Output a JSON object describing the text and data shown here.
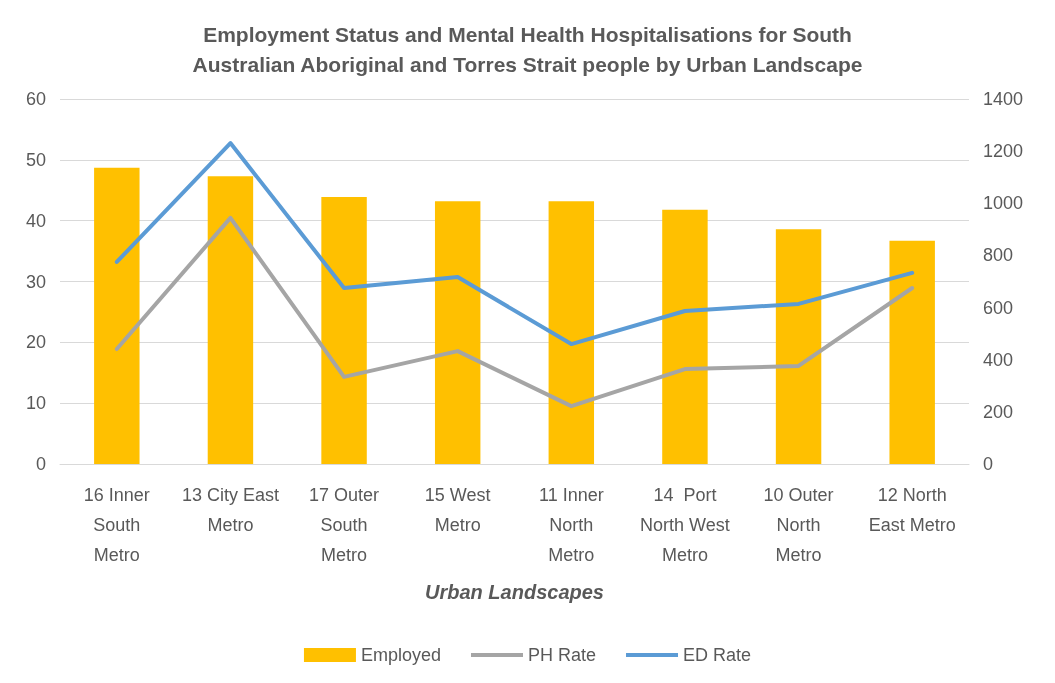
{
  "chart_data": {
    "type": "bar",
    "title": "Employment Status and Mental Health Hospitalisations for South\nAustralian Aboriginal and Torres Strait people by Urban Landscape",
    "xlabel": "Urban Landscapes",
    "categories": [
      "16 Inner\nSouth\nMetro",
      "13 City East\nMetro",
      "17 Outer\nSouth\nMetro",
      "15 West\nMetro",
      "11 Inner\nNorth\nMetro",
      "14  Port\nNorth West\nMetro",
      "10 Outer\nNorth\nMetro",
      "12 North\nEast Metro"
    ],
    "series": [
      {
        "name": "Employed",
        "color": "#ffc000",
        "values": [
          48.7,
          47.3,
          43.9,
          43.2,
          43.2,
          41.8,
          38.6,
          36.7
        ]
      },
      {
        "name": "PH Rate",
        "type": "line",
        "axis": "y2",
        "color": "#a5a5a5",
        "values": [
          441,
          944,
          334,
          433,
          222,
          364,
          376,
          675
        ]
      },
      {
        "name": "ED Rate",
        "type": "line",
        "axis": "y2",
        "color": "#5b9bd5",
        "values": [
          775,
          1231,
          675,
          717,
          460,
          587,
          614,
          733
        ]
      }
    ],
    "ylim": [
      0,
      60
    ],
    "yticks": [
      0,
      10,
      20,
      30,
      40,
      50,
      60
    ],
    "y2lim": [
      0,
      1400
    ],
    "y2ticks": [
      0,
      200,
      400,
      600,
      800,
      1000,
      1200,
      1400
    ],
    "grid": "y",
    "legend": "bottom",
    "marker": "none",
    "line_style": "solid"
  }
}
